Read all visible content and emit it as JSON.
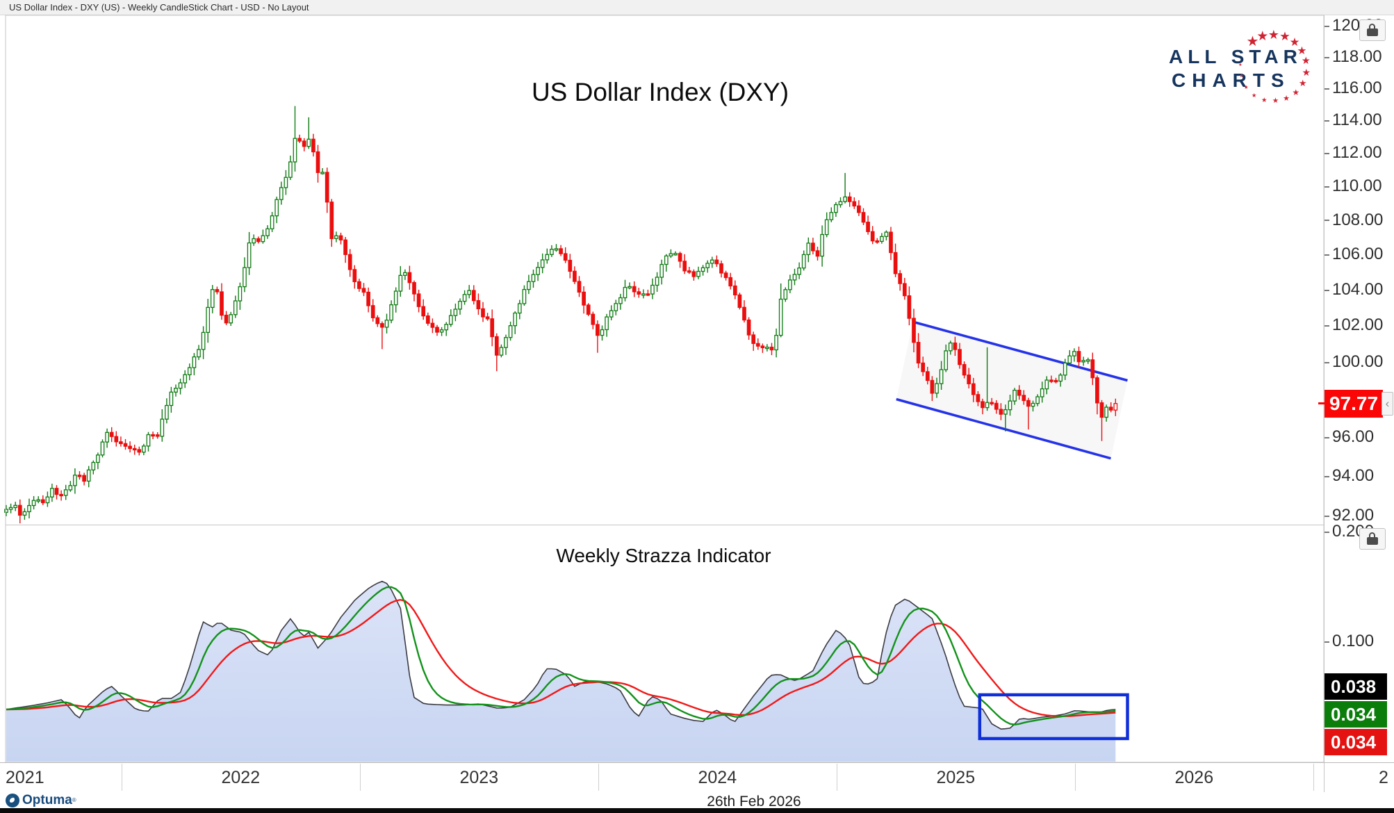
{
  "window": {
    "title": "US Dollar Index - DXY (US) - Weekly CandleStick Chart - USD - No Layout"
  },
  "branding": {
    "logo_line1": "ALL STAR",
    "logo_line2": "CHARTS",
    "logo_text_color": "#16355e",
    "logo_star_color": "#cf2333",
    "vendor": "Optuma"
  },
  "footer": {
    "date_stamp": "26th Feb 2026"
  },
  "main_chart": {
    "title": "US Dollar Index (DXY)",
    "scale": "log",
    "y_ticks": [
      "120.00",
      "118.00",
      "116.00",
      "114.00",
      "112.00",
      "110.00",
      "108.00",
      "106.00",
      "104.00",
      "102.00",
      "100.00",
      "98.00",
      "96.00",
      "94.00",
      "92.00"
    ],
    "last_price_label": "97.77",
    "last_price_color": "#fb0606",
    "up_color": "#0e7a12",
    "down_color": "#ea0e0e"
  },
  "indicator": {
    "title": "Weekly Strazza Indicator",
    "y_ticks": [
      "0.200",
      "0.100"
    ],
    "badges": [
      {
        "label": "0.038",
        "color": "#000000"
      },
      {
        "label": "0.034",
        "color": "#0b7d0b"
      },
      {
        "label": "0.034",
        "color": "#e51212"
      }
    ],
    "fill_color_top": "#dbe3f7",
    "fill_color_bottom": "#c8d5f2",
    "raw_line_color": "#3a3a42",
    "fast_line_color": "#12921a",
    "slow_line_color": "#f01818"
  },
  "x_axis": {
    "years": [
      "2021",
      "2022",
      "2023",
      "2024",
      "2025",
      "2026"
    ],
    "clipped_label": "2"
  },
  "chart_data": {
    "type": "candlestick",
    "title": "US Dollar Index (DXY)",
    "x_unit": "decimal_year",
    "timeframe": "weekly",
    "x_range": [
      2021.5,
      2026.9
    ],
    "main_y_range_log": [
      92,
      120
    ],
    "indicator_y_range": [
      0.0,
      0.2
    ],
    "start_t": 2021.516,
    "weeks": 243,
    "last_close": 97.77,
    "close_anchors": [
      [
        2021.51,
        92.2
      ],
      [
        2021.55,
        92.6
      ],
      [
        2021.58,
        92.0
      ],
      [
        2021.61,
        92.5
      ],
      [
        2021.65,
        92.9
      ],
      [
        2021.68,
        92.6
      ],
      [
        2021.71,
        93.4
      ],
      [
        2021.74,
        92.8
      ],
      [
        2021.77,
        93.3
      ],
      [
        2021.81,
        94.1
      ],
      [
        2021.84,
        93.7
      ],
      [
        2021.87,
        94.4
      ],
      [
        2021.9,
        95.1
      ],
      [
        2021.93,
        96.2
      ],
      [
        2021.96,
        96.0
      ],
      [
        2022.0,
        95.7
      ],
      [
        2022.04,
        95.4
      ],
      [
        2022.08,
        95.2
      ],
      [
        2022.11,
        96.1
      ],
      [
        2022.15,
        96.0
      ],
      [
        2022.18,
        97.3
      ],
      [
        2022.21,
        98.4
      ],
      [
        2022.25,
        98.8
      ],
      [
        2022.29,
        99.9
      ],
      [
        2022.33,
        100.8
      ],
      [
        2022.36,
        102.9
      ],
      [
        2022.39,
        104.6
      ],
      [
        2022.43,
        102.0
      ],
      [
        2022.47,
        102.9
      ],
      [
        2022.51,
        104.9
      ],
      [
        2022.54,
        107.0
      ],
      [
        2022.58,
        106.6
      ],
      [
        2022.62,
        107.8
      ],
      [
        2022.66,
        109.7
      ],
      [
        2022.7,
        110.8
      ],
      [
        2022.73,
        113.2
      ],
      [
        2022.76,
        112.2
      ],
      [
        2022.79,
        113.0
      ],
      [
        2022.82,
        110.9
      ],
      [
        2022.85,
        110.7
      ],
      [
        2022.88,
        106.9
      ],
      [
        2022.91,
        107.2
      ],
      [
        2022.94,
        105.9
      ],
      [
        2022.98,
        104.3
      ],
      [
        2023.02,
        103.8
      ],
      [
        2023.06,
        102.1
      ],
      [
        2023.1,
        101.8
      ],
      [
        2023.14,
        103.6
      ],
      [
        2023.18,
        105.2
      ],
      [
        2023.22,
        104.0
      ],
      [
        2023.26,
        102.7
      ],
      [
        2023.3,
        101.9
      ],
      [
        2023.34,
        101.6
      ],
      [
        2023.38,
        102.5
      ],
      [
        2023.42,
        103.3
      ],
      [
        2023.46,
        104.0
      ],
      [
        2023.5,
        102.8
      ],
      [
        2023.54,
        102.2
      ],
      [
        2023.57,
        100.3
      ],
      [
        2023.61,
        101.2
      ],
      [
        2023.65,
        102.6
      ],
      [
        2023.69,
        104.0
      ],
      [
        2023.73,
        104.8
      ],
      [
        2023.77,
        105.8
      ],
      [
        2023.81,
        106.4
      ],
      [
        2023.85,
        106.1
      ],
      [
        2023.88,
        105.0
      ],
      [
        2023.92,
        103.8
      ],
      [
        2023.96,
        102.6
      ],
      [
        2024.0,
        101.4
      ],
      [
        2024.04,
        102.5
      ],
      [
        2024.08,
        103.3
      ],
      [
        2024.12,
        104.2
      ],
      [
        2024.16,
        103.9
      ],
      [
        2024.2,
        103.6
      ],
      [
        2024.24,
        104.5
      ],
      [
        2024.28,
        105.9
      ],
      [
        2024.32,
        106.1
      ],
      [
        2024.36,
        105.1
      ],
      [
        2024.4,
        104.8
      ],
      [
        2024.44,
        105.3
      ],
      [
        2024.48,
        105.8
      ],
      [
        2024.52,
        104.9
      ],
      [
        2024.56,
        104.1
      ],
      [
        2024.6,
        102.9
      ],
      [
        2024.64,
        101.2
      ],
      [
        2024.67,
        100.8
      ],
      [
        2024.71,
        100.9
      ],
      [
        2024.74,
        100.6
      ],
      [
        2024.76,
        103.3
      ],
      [
        2024.8,
        104.4
      ],
      [
        2024.84,
        105.2
      ],
      [
        2024.88,
        106.6
      ],
      [
        2024.92,
        106.0
      ],
      [
        2024.96,
        108.2
      ],
      [
        2025.0,
        108.9
      ],
      [
        2025.03,
        109.4
      ],
      [
        2025.07,
        109.0
      ],
      [
        2025.1,
        108.2
      ],
      [
        2025.14,
        107.0
      ],
      [
        2025.17,
        106.7
      ],
      [
        2025.21,
        107.3
      ],
      [
        2025.25,
        104.6
      ],
      [
        2025.28,
        104.1
      ],
      [
        2025.31,
        102.0
      ],
      [
        2025.34,
        100.1
      ],
      [
        2025.37,
        99.2
      ],
      [
        2025.4,
        98.4
      ],
      [
        2025.43,
        99.1
      ],
      [
        2025.45,
        100.3
      ],
      [
        2025.47,
        101.3
      ],
      [
        2025.5,
        100.6
      ],
      [
        2025.53,
        99.4
      ],
      [
        2025.56,
        98.8
      ],
      [
        2025.59,
        97.8
      ],
      [
        2025.62,
        97.6
      ],
      [
        2025.64,
        98.0
      ],
      [
        2025.67,
        97.5
      ],
      [
        2025.7,
        97.2
      ],
      [
        2025.73,
        97.9
      ],
      [
        2025.75,
        98.5
      ],
      [
        2025.78,
        98.1
      ],
      [
        2025.81,
        97.4
      ],
      [
        2025.84,
        98.0
      ],
      [
        2025.87,
        98.7
      ],
      [
        2025.89,
        99.2
      ],
      [
        2025.92,
        98.9
      ],
      [
        2025.95,
        99.6
      ],
      [
        2025.97,
        100.2
      ],
      [
        2026.0,
        100.5
      ],
      [
        2026.02,
        100.0
      ],
      [
        2026.05,
        100.2
      ],
      [
        2026.07,
        99.4
      ],
      [
        2026.09,
        97.9
      ],
      [
        2026.11,
        96.9
      ],
      [
        2026.13,
        97.6
      ],
      [
        2026.15,
        97.4
      ],
      [
        2026.17,
        97.77
      ]
    ],
    "wick_overrides": [
      [
        2022.73,
        114.9,
        null
      ],
      [
        2022.79,
        114.2,
        null
      ],
      [
        2025.03,
        110.8,
        null
      ],
      [
        2025.64,
        100.8,
        null
      ],
      [
        2023.57,
        null,
        99.5
      ],
      [
        2023.1,
        null,
        100.7
      ],
      [
        2024.0,
        null,
        100.5
      ],
      [
        2025.7,
        null,
        96.3
      ],
      [
        2025.81,
        null,
        96.4
      ],
      [
        2026.11,
        null,
        95.8
      ]
    ],
    "annotations": {
      "channel": {
        "color": "#2533e8",
        "upper": {
          "t1": 2025.32,
          "p1": 102.2,
          "t2": 2026.22,
          "p2": 99.0
        },
        "lower": {
          "t1": 2025.25,
          "p1": 98.0,
          "t2": 2026.15,
          "p2": 94.9
        }
      },
      "rectangle": {
        "color": "#0f2fd8",
        "t1": 2025.6,
        "t2": 2026.22,
        "v1": 0.0114,
        "v2": 0.0513
      }
    },
    "indicator_series": {
      "name": "Weekly Strazza Indicator",
      "last_values": {
        "raw": 0.038,
        "fast": 0.034,
        "slow": 0.034
      },
      "raw_anchors": [
        [
          2021.513,
          0.038
        ],
        [
          2021.61,
          0.041
        ],
        [
          2021.69,
          0.044
        ],
        [
          2021.75,
          0.047
        ],
        [
          2021.78,
          0.04
        ],
        [
          2021.82,
          0.029
        ],
        [
          2021.85,
          0.04
        ],
        [
          2021.93,
          0.056
        ],
        [
          2021.96,
          0.059
        ],
        [
          2022.0,
          0.05
        ],
        [
          2022.06,
          0.038
        ],
        [
          2022.11,
          0.036
        ],
        [
          2022.16,
          0.048
        ],
        [
          2022.21,
          0.048
        ],
        [
          2022.25,
          0.054
        ],
        [
          2022.29,
          0.08
        ],
        [
          2022.34,
          0.118
        ],
        [
          2022.38,
          0.113
        ],
        [
          2022.41,
          0.118
        ],
        [
          2022.46,
          0.11
        ],
        [
          2022.51,
          0.108
        ],
        [
          2022.57,
          0.092
        ],
        [
          2022.62,
          0.087
        ],
        [
          2022.67,
          0.11
        ],
        [
          2022.71,
          0.121
        ],
        [
          2022.76,
          0.104
        ],
        [
          2022.79,
          0.109
        ],
        [
          2022.82,
          0.093
        ],
        [
          2022.87,
          0.105
        ],
        [
          2022.92,
          0.122
        ],
        [
          2022.98,
          0.138
        ],
        [
          2023.04,
          0.149
        ],
        [
          2023.09,
          0.155
        ],
        [
          2023.12,
          0.152
        ],
        [
          2023.17,
          0.13
        ],
        [
          2023.22,
          0.05
        ],
        [
          2023.27,
          0.043
        ],
        [
          2023.36,
          0.042
        ],
        [
          2023.43,
          0.042
        ],
        [
          2023.5,
          0.043
        ],
        [
          2023.58,
          0.039
        ],
        [
          2023.63,
          0.04
        ],
        [
          2023.69,
          0.047
        ],
        [
          2023.74,
          0.059
        ],
        [
          2023.78,
          0.075
        ],
        [
          2023.82,
          0.075
        ],
        [
          2023.87,
          0.069
        ],
        [
          2023.9,
          0.059
        ],
        [
          2023.94,
          0.063
        ],
        [
          2023.98,
          0.064
        ],
        [
          2024.04,
          0.061
        ],
        [
          2024.09,
          0.056
        ],
        [
          2024.14,
          0.037
        ],
        [
          2024.17,
          0.032
        ],
        [
          2024.22,
          0.05
        ],
        [
          2024.26,
          0.047
        ],
        [
          2024.3,
          0.034
        ],
        [
          2024.36,
          0.03
        ],
        [
          2024.4,
          0.028
        ],
        [
          2024.44,
          0.027
        ],
        [
          2024.49,
          0.038
        ],
        [
          2024.53,
          0.033
        ],
        [
          2024.57,
          0.026
        ],
        [
          2024.65,
          0.05
        ],
        [
          2024.72,
          0.069
        ],
        [
          2024.76,
          0.07
        ],
        [
          2024.8,
          0.066
        ],
        [
          2024.83,
          0.064
        ],
        [
          2024.9,
          0.073
        ],
        [
          2024.95,
          0.095
        ],
        [
          2025.0,
          0.111
        ],
        [
          2025.05,
          0.1
        ],
        [
          2025.1,
          0.062
        ],
        [
          2025.14,
          0.061
        ],
        [
          2025.17,
          0.066
        ],
        [
          2025.2,
          0.102
        ],
        [
          2025.24,
          0.132
        ],
        [
          2025.29,
          0.139
        ],
        [
          2025.34,
          0.131
        ],
        [
          2025.4,
          0.121
        ],
        [
          2025.45,
          0.092
        ],
        [
          2025.49,
          0.064
        ],
        [
          2025.53,
          0.041
        ],
        [
          2025.57,
          0.04
        ],
        [
          2025.61,
          0.039
        ],
        [
          2025.65,
          0.025
        ],
        [
          2025.69,
          0.02
        ],
        [
          2025.73,
          0.021
        ],
        [
          2025.77,
          0.03
        ],
        [
          2025.81,
          0.029
        ],
        [
          2025.86,
          0.031
        ],
        [
          2025.91,
          0.032
        ],
        [
          2025.96,
          0.034
        ],
        [
          2026.0,
          0.037
        ],
        [
          2026.05,
          0.036
        ],
        [
          2026.1,
          0.035
        ],
        [
          2026.13,
          0.037
        ],
        [
          2026.16,
          0.038
        ]
      ]
    }
  }
}
